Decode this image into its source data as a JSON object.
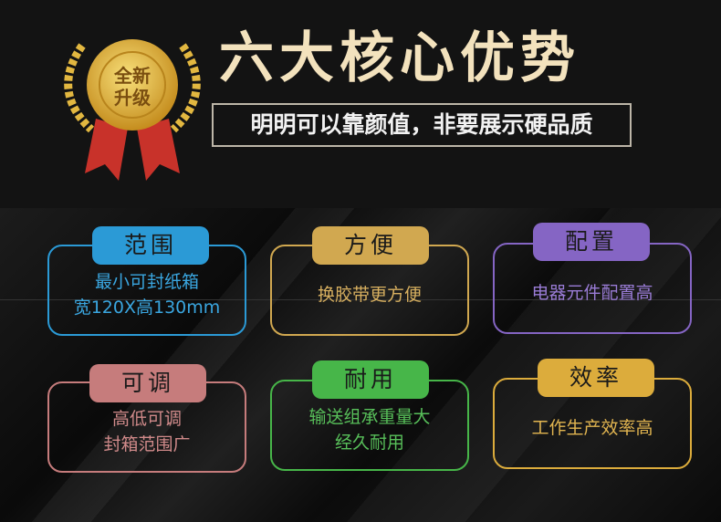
{
  "badge": {
    "text": "全新升级"
  },
  "header": {
    "title": "六大核心优势",
    "subtitle": "明明可以靠颜值，非要展示硬品质"
  },
  "features": [
    {
      "label": "范围",
      "lines": [
        "最小可封纸箱",
        "宽120X高130mm"
      ],
      "color": "#2b9ad6",
      "text_color": "#3aa6e0"
    },
    {
      "label": "方便",
      "lines": [
        "换胶带更方便"
      ],
      "color": "#d1a850",
      "text_color": "#d8b060"
    },
    {
      "label": "配置",
      "lines": [
        "电器元件配置高"
      ],
      "color": "#8565c4",
      "text_color": "#9a7cd6"
    },
    {
      "label": "可调",
      "lines": [
        "高低可调",
        "封箱范围广"
      ],
      "color": "#c67c7c",
      "text_color": "#d08a8a"
    },
    {
      "label": "耐用",
      "lines": [
        "输送组承重量大",
        "经久耐用"
      ],
      "color": "#47b649",
      "text_color": "#58c05a"
    },
    {
      "label": "效率",
      "lines": [
        "工作生产效率高"
      ],
      "color": "#dcac3c",
      "text_color": "#e2b550"
    }
  ]
}
